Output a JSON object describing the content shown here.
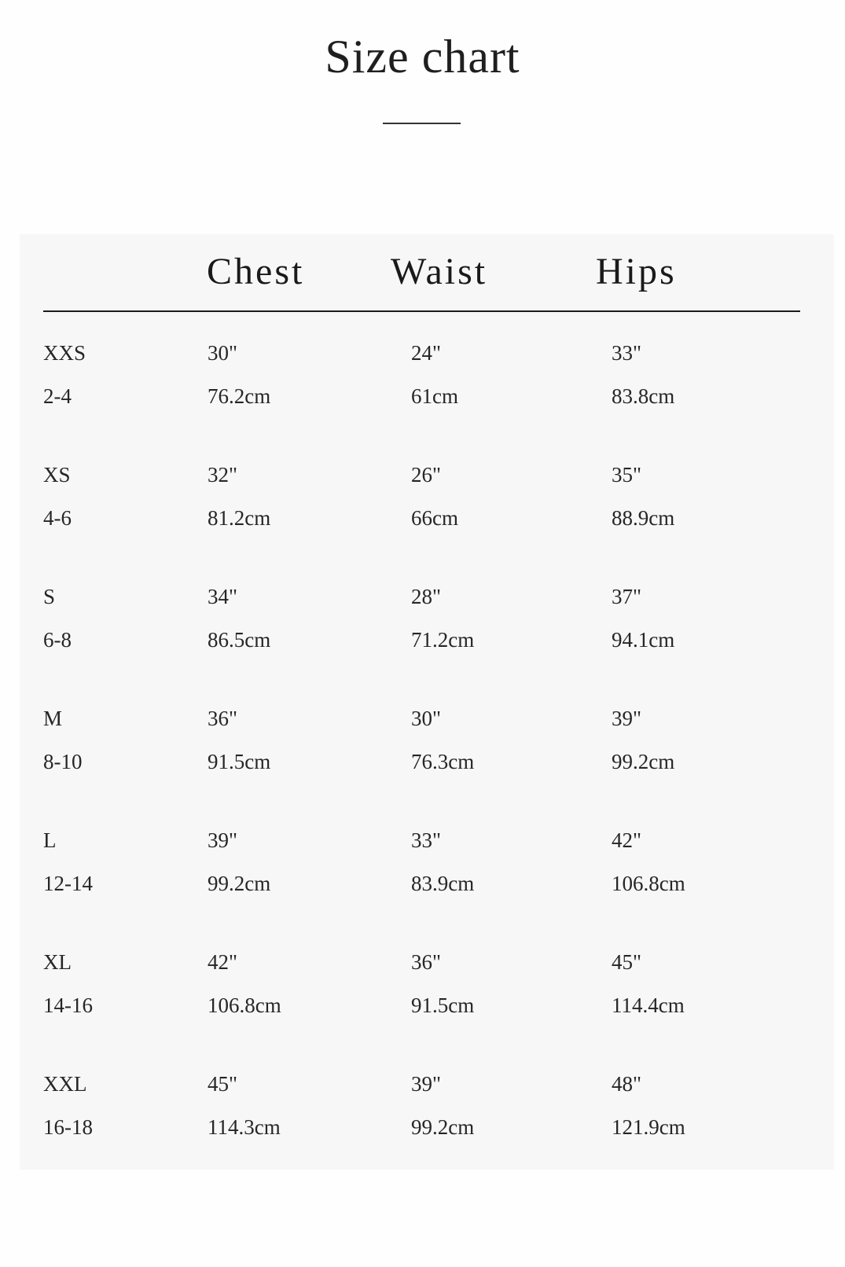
{
  "title": "Size chart",
  "table": {
    "headers": [
      "Chest",
      "Waist",
      "Hips"
    ],
    "rows": [
      {
        "size": "XXS",
        "uk": "2-4",
        "chest_in": "30\"",
        "chest_cm": "76.2cm",
        "waist_in": "24\"",
        "waist_cm": "61cm",
        "hips_in": "33\"",
        "hips_cm": "83.8cm"
      },
      {
        "size": "XS",
        "uk": "4-6",
        "chest_in": "32\"",
        "chest_cm": "81.2cm",
        "waist_in": "26\"",
        "waist_cm": "66cm",
        "hips_in": "35\"",
        "hips_cm": "88.9cm"
      },
      {
        "size": "S",
        "uk": "6-8",
        "chest_in": "34\"",
        "chest_cm": "86.5cm",
        "waist_in": "28\"",
        "waist_cm": "71.2cm",
        "hips_in": "37\"",
        "hips_cm": "94.1cm"
      },
      {
        "size": "M",
        "uk": "8-10",
        "chest_in": "36\"",
        "chest_cm": "91.5cm",
        "waist_in": "30\"",
        "waist_cm": "76.3cm",
        "hips_in": "39\"",
        "hips_cm": "99.2cm"
      },
      {
        "size": "L",
        "uk": "12-14",
        "chest_in": "39\"",
        "chest_cm": "99.2cm",
        "waist_in": "33\"",
        "waist_cm": "83.9cm",
        "hips_in": "42\"",
        "hips_cm": "106.8cm"
      },
      {
        "size": "XL",
        "uk": "14-16",
        "chest_in": "42\"",
        "chest_cm": "106.8cm",
        "waist_in": "36\"",
        "waist_cm": "91.5cm",
        "hips_in": "45\"",
        "hips_cm": "114.4cm"
      },
      {
        "size": "XXL",
        "uk": "16-18",
        "chest_in": "45\"",
        "chest_cm": "114.3cm",
        "waist_in": "39\"",
        "waist_cm": "99.2cm",
        "hips_in": "48\"",
        "hips_cm": "121.9cm"
      }
    ]
  },
  "colors": {
    "panel_background": "#f7f7f7",
    "text": "#222222"
  }
}
